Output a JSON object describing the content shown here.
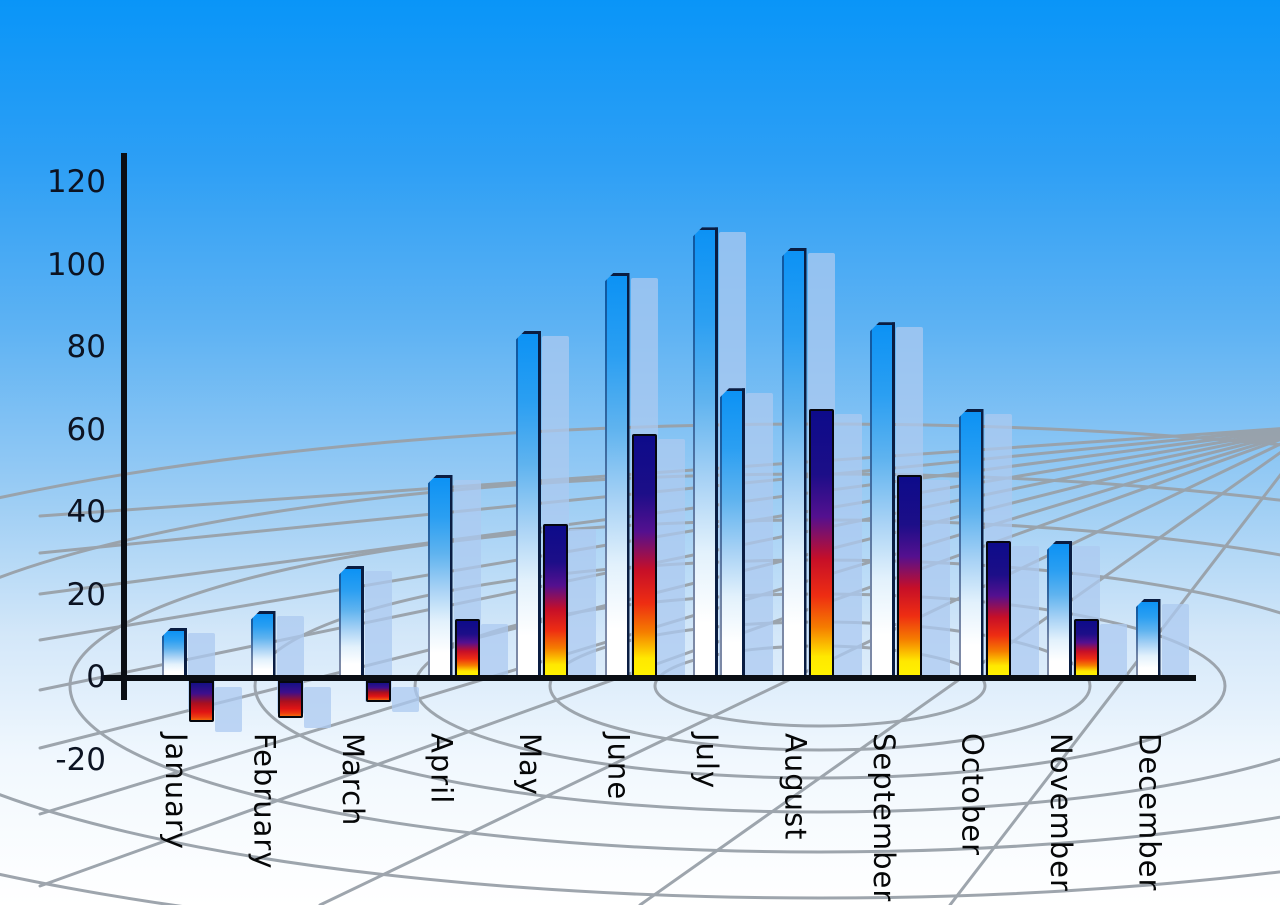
{
  "chart_data": {
    "type": "bar",
    "title": "",
    "categories": [
      "January",
      "February",
      "March",
      "April",
      "May",
      "June",
      "July",
      "August",
      "September",
      "October",
      "November",
      "December"
    ],
    "series": [
      {
        "name": "primary-blue-bars",
        "values": [
          12,
          16,
          27,
          49,
          84,
          98,
          109,
          104,
          86,
          65,
          33,
          19
        ]
      },
      {
        "name": "secondary-bars",
        "values": [
          -10,
          -9,
          -5,
          14,
          37,
          59,
          70,
          65,
          49,
          33,
          14,
          null
        ]
      }
    ],
    "secondary_bar_style": [
      "fire",
      "fire",
      "fire",
      "fire",
      "fire",
      "fire",
      "blue",
      "fire",
      "fire",
      "fire",
      "fire",
      "none"
    ],
    "y_axis": {
      "min": -20,
      "max": 120,
      "step": 20,
      "tick_labels": [
        120,
        100,
        80,
        60,
        40,
        20,
        0,
        -20
      ]
    },
    "xlabel": "",
    "ylabel": "",
    "legend_position": "none",
    "grid": "decorative 3d perspective floor grid",
    "x_label_rotation": "vertical"
  },
  "colors": {
    "sky_top": "#0995f8",
    "sky_bottom": "#ffffff",
    "bar_blue_top": "#0c92f4",
    "bar_blue_bottom": "#ffffff",
    "fire_navy": "#0d0b8a",
    "fire_red": "#e01414",
    "fire_yellow": "#ffe800",
    "shadow_bar": "#accaf0",
    "grid_gray": "#99a1a9",
    "axis_black": "#0a0e14",
    "label_black": "#0c1322"
  }
}
